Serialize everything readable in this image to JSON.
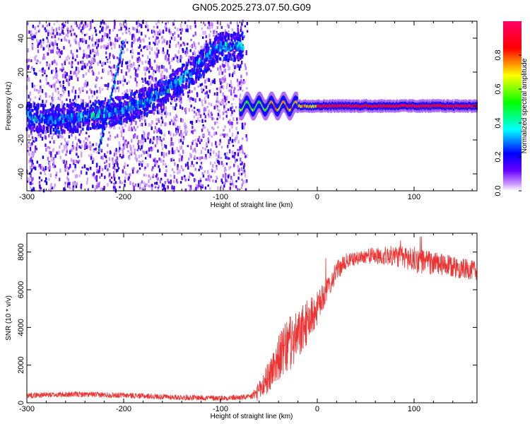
{
  "title": "GN05.2025.273.07.50.G09",
  "chart_data": [
    {
      "type": "heatmap",
      "xlabel": "Height of straight line (km)",
      "ylabel": "Frequency (Hz)",
      "xlim": [
        -300,
        165
      ],
      "ylim": [
        -50,
        50
      ],
      "xticks": [
        -300,
        -200,
        -100,
        0,
        100
      ],
      "yticks": [
        -40,
        -20,
        0,
        20,
        40
      ],
      "colorbar": {
        "label": "Normalized spectral amplitude",
        "range": [
          0,
          1
        ],
        "ticks": [
          "0.0",
          "0.2",
          "0.4",
          "0.6",
          "0.8"
        ],
        "tick_values": [
          0,
          0.2,
          0.4,
          0.6,
          0.8
        ],
        "colormap": [
          "#ffffff",
          "#6600ff",
          "#0000ff",
          "#00ffff",
          "#00ff00",
          "#ffff00",
          "#ff0000",
          "#ff0066"
        ]
      },
      "ridge": [
        {
          "x": -300,
          "y": -6
        },
        {
          "x": -275,
          "y": -8
        },
        {
          "x": -250,
          "y": -7
        },
        {
          "x": -225,
          "y": -5
        },
        {
          "x": -200,
          "y": -2
        },
        {
          "x": -175,
          "y": 3
        },
        {
          "x": -150,
          "y": 12
        },
        {
          "x": -130,
          "y": 20
        },
        {
          "x": -115,
          "y": 28
        },
        {
          "x": -100,
          "y": 35
        }
      ],
      "diagonal_streak": [
        {
          "x": -225,
          "y": -25
        },
        {
          "x": -200,
          "y": 38
        }
      ],
      "scatter_region": {
        "x": [
          -300,
          -72
        ],
        "y": [
          -50,
          50
        ]
      },
      "narrow_band": {
        "x": [
          -80,
          165
        ],
        "y": 0
      }
    },
    {
      "type": "line",
      "xlabel": "Height of straight line (km)",
      "ylabel": "SNR (10 * v/v)",
      "xlim": [
        -300,
        165
      ],
      "ylim": [
        0,
        9000
      ],
      "xticks": [
        -300,
        -200,
        -100,
        0,
        100
      ],
      "yticks": [
        0,
        2000,
        4000,
        6000,
        8000
      ],
      "color": "#ee3333",
      "trend": [
        {
          "x": -300,
          "y": 400
        },
        {
          "x": -250,
          "y": 450
        },
        {
          "x": -200,
          "y": 400
        },
        {
          "x": -150,
          "y": 300
        },
        {
          "x": -100,
          "y": 250
        },
        {
          "x": -70,
          "y": 300
        },
        {
          "x": -60,
          "y": 600
        },
        {
          "x": -50,
          "y": 1400
        },
        {
          "x": -40,
          "y": 2400
        },
        {
          "x": -30,
          "y": 3000
        },
        {
          "x": -20,
          "y": 3500
        },
        {
          "x": -10,
          "y": 4300
        },
        {
          "x": 0,
          "y": 5000
        },
        {
          "x": 10,
          "y": 6000
        },
        {
          "x": 20,
          "y": 7000
        },
        {
          "x": 30,
          "y": 7500
        },
        {
          "x": 50,
          "y": 7800
        },
        {
          "x": 80,
          "y": 7800
        },
        {
          "x": 100,
          "y": 7600
        },
        {
          "x": 130,
          "y": 7300
        },
        {
          "x": 165,
          "y": 7000
        }
      ],
      "noise": [
        {
          "x": -300,
          "y": 150
        },
        {
          "x": -70,
          "y": 150
        },
        {
          "x": -55,
          "y": 700
        },
        {
          "x": -30,
          "y": 1500
        },
        {
          "x": -10,
          "y": 1200
        },
        {
          "x": 10,
          "y": 600
        },
        {
          "x": 40,
          "y": 350
        },
        {
          "x": 70,
          "y": 500
        },
        {
          "x": 100,
          "y": 700
        },
        {
          "x": 165,
          "y": 500
        }
      ]
    }
  ]
}
